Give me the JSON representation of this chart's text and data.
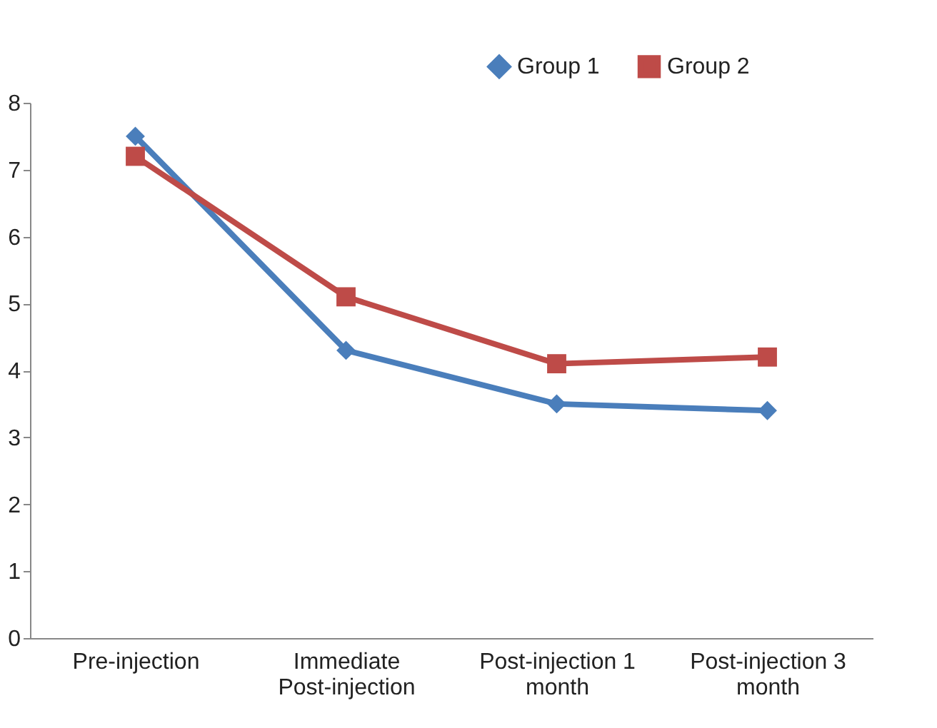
{
  "chart_data": {
    "type": "line",
    "categories": [
      "Pre-injection",
      "Immediate Post-injection",
      "Post-injection 1 month",
      "Post-injection 3 month"
    ],
    "series": [
      {
        "name": "Group 1",
        "color": "#4a7ebb",
        "marker": "diamond",
        "values": [
          7.5,
          4.3,
          3.5,
          3.4
        ]
      },
      {
        "name": "Group 2",
        "color": "#be4b48",
        "marker": "square",
        "values": [
          7.2,
          5.1,
          4.1,
          4.2
        ]
      }
    ],
    "ylim": [
      0,
      8
    ],
    "yticks": [
      0,
      1,
      2,
      3,
      4,
      5,
      6,
      7,
      8
    ],
    "grid": false,
    "legend": "top right"
  }
}
